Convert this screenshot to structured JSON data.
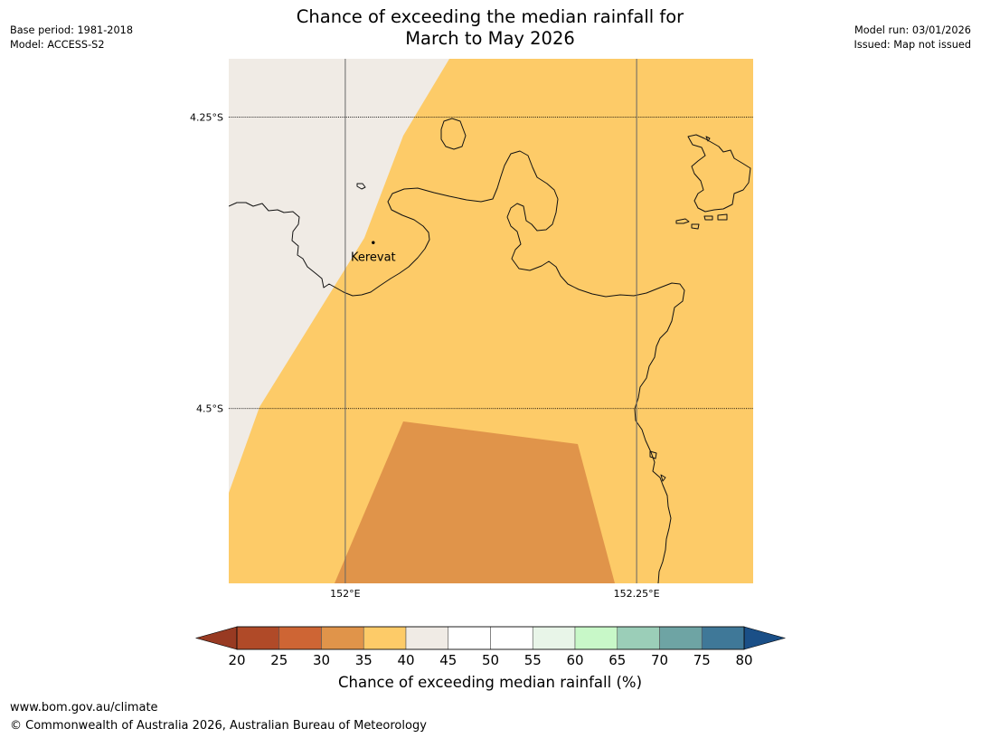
{
  "title": {
    "line1": "Chance of exceeding the median rainfall for",
    "line2": "March to May 2026"
  },
  "meta_left": {
    "base_period": "Base period: 1981-2018",
    "model": "Model: ACCESS-S2"
  },
  "meta_right": {
    "model_run": "Model run: 03/01/2026",
    "issued": "Issued: Map not issued"
  },
  "map": {
    "extent": {
      "lon_min": 151.9,
      "lon_max": 152.35,
      "lat_min": -4.65,
      "lat_max": -4.2
    },
    "lat_labels": [
      {
        "lat": -4.25,
        "label": "4.25°S"
      },
      {
        "lat": -4.5,
        "label": "4.5°S"
      }
    ],
    "lon_labels": [
      {
        "lon": 152.0,
        "label": "152°E"
      },
      {
        "lon": 152.25,
        "label": "152.25°E"
      }
    ],
    "place": {
      "name": "Kerevat",
      "lon": 152.024,
      "lat": -4.3577
    },
    "colors": {
      "band_40_45": "#f0ebe5",
      "band_35_40": "#fdcb68",
      "band_30_35": "#e0944a",
      "coast": "#111111",
      "grid": "#666666"
    }
  },
  "colorbar": {
    "ticks": [
      "20",
      "25",
      "30",
      "35",
      "40",
      "45",
      "50",
      "55",
      "60",
      "65",
      "70",
      "75",
      "80"
    ],
    "colors": [
      "#b04a28",
      "#ce6534",
      "#e0944a",
      "#fdcb68",
      "#f0ebe5",
      "#ffffff",
      "#ffffff",
      "#e8f5e8",
      "#c8f8c8",
      "#9bceb8",
      "#6ea4a4",
      "#3f7898"
    ],
    "under_color": "#983a22",
    "over_color": "#1a4f87",
    "label": "Chance of exceeding median rainfall (%)"
  },
  "footer": {
    "url": "www.bom.gov.au/climate",
    "copyright": "© Commonwealth of Australia 2026, Australian Bureau of Meteorology"
  }
}
